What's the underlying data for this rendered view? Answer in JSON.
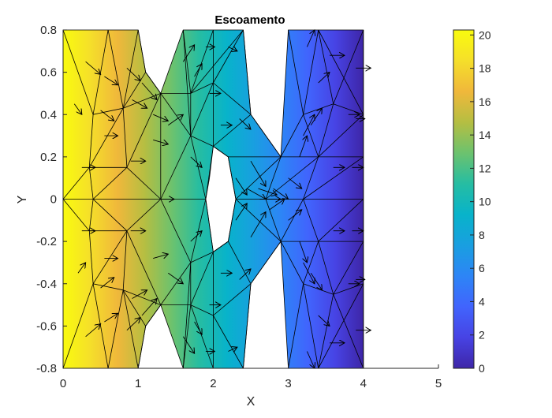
{
  "chart_data": {
    "type": "heatmap",
    "title": "Escoamento",
    "xlabel": "X",
    "ylabel": "Y",
    "xlim": [
      0,
      5
    ],
    "ylim": [
      -0.8,
      0.8
    ],
    "x_ticks": [
      0,
      1,
      2,
      3,
      4,
      5
    ],
    "x_tick_labels": [
      "0",
      "1",
      "2",
      "3",
      "4",
      "5"
    ],
    "y_ticks": [
      0.8,
      0.6,
      0.4,
      0.2,
      0,
      -0.2,
      -0.4,
      -0.6,
      -0.8
    ],
    "y_tick_labels": [
      "0.8",
      "0.6",
      "0.4",
      "0.2",
      "0",
      "-0.2",
      "-0.4",
      "-0.6",
      "-0.8"
    ],
    "colorbar": {
      "range": [
        0,
        20.3
      ],
      "ticks": [
        0,
        2,
        4,
        6,
        8,
        10,
        12,
        14,
        16,
        18,
        20
      ],
      "tick_labels": [
        "0",
        "2",
        "4",
        "6",
        "8",
        "10",
        "12",
        "14",
        "16",
        "18",
        "20"
      ],
      "colormap": "parula",
      "colormap_stops": [
        "#3E26A8",
        "#4743E4",
        "#4164FD",
        "#2D85F6",
        "#199FE0",
        "#08B3CA",
        "#26BDA2",
        "#6CC26E",
        "#B5BE42",
        "#F0B83B",
        "#F5DF2A",
        "#F9FB0E"
      ]
    },
    "field": "potential decreasing with x: about 20.3 at x=0, about 0 at x=4",
    "domain_outline": [
      [
        0,
        0.8
      ],
      [
        1.0,
        0.8
      ],
      [
        1.1,
        0.6
      ],
      [
        1.3,
        0.5
      ],
      [
        1.6,
        0.8
      ],
      [
        2.4,
        0.8
      ],
      [
        2.5,
        0.4
      ],
      [
        2.9,
        0.2
      ],
      [
        3.0,
        0.8
      ],
      [
        4.0,
        0.8
      ],
      [
        4.0,
        -0.8
      ],
      [
        3.0,
        -0.8
      ],
      [
        2.9,
        -0.2
      ],
      [
        2.5,
        -0.4
      ],
      [
        2.4,
        -0.8
      ],
      [
        1.6,
        -0.8
      ],
      [
        1.3,
        -0.5
      ],
      [
        1.1,
        -0.6
      ],
      [
        1.0,
        -0.8
      ],
      [
        0,
        -0.8
      ]
    ],
    "hole_outline": [
      [
        2.0,
        0.25
      ],
      [
        2.2,
        0.2
      ],
      [
        2.3,
        0
      ],
      [
        2.2,
        -0.2
      ],
      [
        2.0,
        -0.25
      ],
      [
        1.9,
        0
      ],
      [
        1.95,
        0.1
      ]
    ],
    "mesh_nodes": [
      [
        0,
        0.8
      ],
      [
        0.6,
        0.8
      ],
      [
        1.0,
        0.8
      ],
      [
        1.6,
        0.8
      ],
      [
        2.0,
        0.8
      ],
      [
        2.4,
        0.8
      ],
      [
        3.0,
        0.8
      ],
      [
        3.4,
        0.8
      ],
      [
        4.0,
        0.8
      ],
      [
        0.4,
        0.4
      ],
      [
        0.8,
        0.43
      ],
      [
        1.3,
        0.5
      ],
      [
        1.7,
        0.5
      ],
      [
        2.0,
        0.55
      ],
      [
        2.5,
        0.4
      ],
      [
        3.2,
        0.4
      ],
      [
        3.6,
        0.45
      ],
      [
        4.0,
        0.4
      ],
      [
        0.35,
        0.15
      ],
      [
        0.85,
        0.15
      ],
      [
        1.7,
        0.3
      ],
      [
        2.0,
        0.25
      ],
      [
        2.9,
        0.2
      ],
      [
        3.4,
        0.2
      ],
      [
        4.0,
        0.2
      ],
      [
        0,
        0
      ],
      [
        0.4,
        0
      ],
      [
        1.3,
        0
      ],
      [
        1.9,
        0
      ],
      [
        2.3,
        0
      ],
      [
        2.7,
        0
      ],
      [
        3.2,
        0
      ],
      [
        4.0,
        0
      ],
      [
        0.35,
        -0.15
      ],
      [
        0.85,
        -0.15
      ],
      [
        1.7,
        -0.3
      ],
      [
        2.0,
        -0.25
      ],
      [
        2.9,
        -0.2
      ],
      [
        3.4,
        -0.2
      ],
      [
        4.0,
        -0.2
      ],
      [
        0.4,
        -0.4
      ],
      [
        0.8,
        -0.43
      ],
      [
        1.3,
        -0.5
      ],
      [
        1.7,
        -0.5
      ],
      [
        2.0,
        -0.55
      ],
      [
        2.5,
        -0.4
      ],
      [
        3.2,
        -0.4
      ],
      [
        3.6,
        -0.45
      ],
      [
        4.0,
        -0.4
      ],
      [
        0,
        -0.8
      ],
      [
        0.6,
        -0.8
      ],
      [
        1.0,
        -0.8
      ],
      [
        1.6,
        -0.8
      ],
      [
        2.0,
        -0.8
      ],
      [
        2.4,
        -0.8
      ],
      [
        3.0,
        -0.8
      ],
      [
        3.4,
        -0.8
      ],
      [
        4.0,
        -0.8
      ],
      [
        1.1,
        0.6
      ],
      [
        1.1,
        -0.6
      ],
      [
        2.2,
        0.2
      ],
      [
        2.2,
        -0.2
      ]
    ],
    "mesh_edges": [
      [
        0,
        9
      ],
      [
        1,
        9
      ],
      [
        1,
        10
      ],
      [
        2,
        10
      ],
      [
        2,
        58
      ],
      [
        58,
        10
      ],
      [
        58,
        11
      ],
      [
        10,
        11
      ],
      [
        3,
        12
      ],
      [
        4,
        12
      ],
      [
        4,
        13
      ],
      [
        5,
        13
      ],
      [
        5,
        14
      ],
      [
        12,
        13
      ],
      [
        13,
        14
      ],
      [
        11,
        12
      ],
      [
        6,
        15
      ],
      [
        7,
        15
      ],
      [
        7,
        16
      ],
      [
        8,
        16
      ],
      [
        8,
        17
      ],
      [
        15,
        16
      ],
      [
        16,
        17
      ],
      [
        9,
        10
      ],
      [
        9,
        18
      ],
      [
        10,
        18
      ],
      [
        10,
        19
      ],
      [
        18,
        19
      ],
      [
        11,
        19
      ],
      [
        11,
        20
      ],
      [
        12,
        20
      ],
      [
        13,
        20
      ],
      [
        13,
        21
      ],
      [
        20,
        21
      ],
      [
        14,
        21
      ],
      [
        14,
        22
      ],
      [
        21,
        60
      ],
      [
        60,
        22
      ],
      [
        15,
        22
      ],
      [
        15,
        23
      ],
      [
        16,
        23
      ],
      [
        17,
        23
      ],
      [
        17,
        24
      ],
      [
        22,
        23
      ],
      [
        23,
        24
      ],
      [
        0,
        25
      ],
      [
        25,
        18
      ],
      [
        18,
        26
      ],
      [
        19,
        26
      ],
      [
        19,
        27
      ],
      [
        11,
        27
      ],
      [
        20,
        27
      ],
      [
        20,
        28
      ],
      [
        21,
        28
      ],
      [
        60,
        29
      ],
      [
        22,
        29
      ],
      [
        22,
        30
      ],
      [
        23,
        30
      ],
      [
        23,
        31
      ],
      [
        24,
        31
      ],
      [
        24,
        32
      ],
      [
        31,
        32
      ],
      [
        29,
        30
      ],
      [
        30,
        31
      ],
      [
        25,
        26
      ],
      [
        26,
        27
      ],
      [
        27,
        28
      ],
      [
        25,
        33
      ],
      [
        33,
        26
      ],
      [
        26,
        34
      ],
      [
        33,
        34
      ],
      [
        34,
        27
      ],
      [
        27,
        35
      ],
      [
        35,
        28
      ],
      [
        35,
        36
      ],
      [
        28,
        36
      ],
      [
        36,
        61
      ],
      [
        61,
        29
      ],
      [
        29,
        37
      ],
      [
        30,
        37
      ],
      [
        31,
        37
      ],
      [
        31,
        38
      ],
      [
        32,
        38
      ],
      [
        32,
        39
      ],
      [
        37,
        38
      ],
      [
        38,
        39
      ],
      [
        33,
        40
      ],
      [
        34,
        40
      ],
      [
        34,
        41
      ],
      [
        40,
        41
      ],
      [
        41,
        42
      ],
      [
        34,
        42
      ],
      [
        35,
        42
      ],
      [
        35,
        43
      ],
      [
        36,
        43
      ],
      [
        36,
        44
      ],
      [
        43,
        44
      ],
      [
        44,
        45
      ],
      [
        61,
        45
      ],
      [
        45,
        37
      ],
      [
        37,
        46
      ],
      [
        38,
        46
      ],
      [
        38,
        47
      ],
      [
        39,
        47
      ],
      [
        39,
        48
      ],
      [
        46,
        47
      ],
      [
        47,
        48
      ],
      [
        40,
        49
      ],
      [
        40,
        50
      ],
      [
        41,
        50
      ],
      [
        41,
        51
      ],
      [
        51,
        59
      ],
      [
        59,
        41
      ],
      [
        59,
        42
      ],
      [
        42,
        43
      ],
      [
        43,
        52
      ],
      [
        43,
        53
      ],
      [
        44,
        53
      ],
      [
        44,
        54
      ],
      [
        45,
        54
      ],
      [
        46,
        55
      ],
      [
        46,
        56
      ],
      [
        47,
        56
      ],
      [
        47,
        57
      ],
      [
        48,
        57
      ],
      [
        3,
        20
      ],
      [
        52,
        35
      ],
      [
        12,
        5
      ],
      [
        7,
        17
      ],
      [
        56,
        48
      ]
    ],
    "vectors": [
      [
        0.3,
        0.65,
        0.2,
        -0.06
      ],
      [
        0.5,
        0.42,
        0.18,
        -0.05
      ],
      [
        0.55,
        0.58,
        0.18,
        -0.04
      ],
      [
        0.85,
        0.62,
        0.18,
        -0.06
      ],
      [
        0.92,
        0.47,
        0.2,
        -0.04
      ],
      [
        1.05,
        0.55,
        0.2,
        -0.08
      ],
      [
        1.2,
        0.4,
        0.2,
        -0.03
      ],
      [
        0.15,
        0.45,
        0.1,
        -0.05
      ],
      [
        0.25,
        0.15,
        0.18,
        0.0
      ],
      [
        0.55,
        0.3,
        0.18,
        0.0
      ],
      [
        0.9,
        0.18,
        0.2,
        0.0
      ],
      [
        1.2,
        0.28,
        0.2,
        -0.02
      ],
      [
        1.4,
        0.35,
        0.2,
        0.05
      ],
      [
        1.6,
        0.65,
        0.15,
        0.08
      ],
      [
        1.75,
        0.58,
        0.1,
        0.06
      ],
      [
        1.9,
        0.72,
        0.12,
        0.0
      ],
      [
        2.2,
        0.72,
        0.12,
        -0.02
      ],
      [
        1.95,
        0.5,
        0.15,
        0.0
      ],
      [
        2.1,
        0.35,
        0.15,
        0.0
      ],
      [
        2.35,
        0.38,
        0.15,
        -0.05
      ],
      [
        1.7,
        0.2,
        0.15,
        -0.05
      ],
      [
        2.3,
        0.1,
        0.15,
        -0.08
      ],
      [
        2.5,
        0.18,
        0.2,
        -0.12
      ],
      [
        2.45,
        0.05,
        0.25,
        -0.05
      ],
      [
        2.6,
        0.05,
        0.25,
        -0.03
      ],
      [
        2.8,
        0.05,
        0.2,
        -0.05
      ],
      [
        3.0,
        0.1,
        0.18,
        -0.05
      ],
      [
        3.15,
        0.2,
        0.1,
        0.1
      ],
      [
        3.2,
        0.3,
        0.15,
        0.1
      ],
      [
        3.3,
        0.35,
        0.15,
        0.08
      ],
      [
        3.25,
        0.72,
        0.1,
        0.08
      ],
      [
        3.55,
        0.68,
        0.2,
        0.0
      ],
      [
        3.4,
        0.55,
        0.15,
        0.05
      ],
      [
        3.6,
        0.15,
        0.15,
        0.0
      ],
      [
        3.85,
        0.15,
        0.15,
        0.0
      ],
      [
        3.8,
        0.4,
        0.15,
        0.0
      ],
      [
        3.9,
        0.62,
        0.2,
        0.0
      ],
      [
        0.2,
        -0.35,
        0.1,
        0.05
      ],
      [
        0.25,
        -0.15,
        0.18,
        0.0
      ],
      [
        0.55,
        -0.28,
        0.18,
        0.0
      ],
      [
        0.9,
        -0.15,
        0.2,
        0.0
      ],
      [
        1.2,
        -0.28,
        0.2,
        0.02
      ],
      [
        0.3,
        -0.65,
        0.2,
        0.06
      ],
      [
        0.55,
        -0.58,
        0.18,
        0.04
      ],
      [
        0.5,
        -0.42,
        0.18,
        0.05
      ],
      [
        0.85,
        -0.62,
        0.18,
        0.06
      ],
      [
        0.92,
        -0.47,
        0.2,
        0.04
      ],
      [
        1.05,
        -0.55,
        0.2,
        0.08
      ],
      [
        1.4,
        -0.35,
        0.2,
        -0.05
      ],
      [
        1.6,
        -0.65,
        0.15,
        -0.08
      ],
      [
        1.75,
        -0.58,
        0.1,
        -0.06
      ],
      [
        1.9,
        -0.72,
        0.12,
        0.0
      ],
      [
        2.2,
        -0.72,
        0.12,
        0.02
      ],
      [
        1.95,
        -0.5,
        0.15,
        0.0
      ],
      [
        2.1,
        -0.35,
        0.15,
        0.0
      ],
      [
        2.35,
        -0.38,
        0.15,
        0.05
      ],
      [
        1.7,
        -0.2,
        0.15,
        0.05
      ],
      [
        2.3,
        -0.1,
        0.15,
        0.08
      ],
      [
        2.5,
        -0.18,
        0.2,
        0.12
      ],
      [
        2.75,
        -0.05,
        0.2,
        0.05
      ],
      [
        3.0,
        -0.1,
        0.18,
        0.05
      ],
      [
        3.15,
        -0.2,
        0.1,
        -0.1
      ],
      [
        3.2,
        -0.3,
        0.15,
        -0.1
      ],
      [
        3.3,
        -0.35,
        0.15,
        -0.08
      ],
      [
        3.25,
        -0.72,
        0.1,
        -0.08
      ],
      [
        3.55,
        -0.68,
        0.2,
        0.0
      ],
      [
        3.4,
        -0.55,
        0.15,
        -0.05
      ],
      [
        3.6,
        -0.15,
        0.15,
        0.0
      ],
      [
        3.85,
        -0.15,
        0.15,
        0.0
      ],
      [
        3.8,
        -0.4,
        0.15,
        0.0
      ],
      [
        3.9,
        -0.62,
        0.2,
        0.0
      ],
      [
        1.3,
        0.0,
        0.18,
        0.0
      ],
      [
        2.65,
        0.0,
        0.25,
        0.0
      ],
      [
        3.9,
        0.38,
        0.12,
        0.0
      ],
      [
        3.9,
        -0.38,
        0.12,
        0.0
      ]
    ]
  }
}
